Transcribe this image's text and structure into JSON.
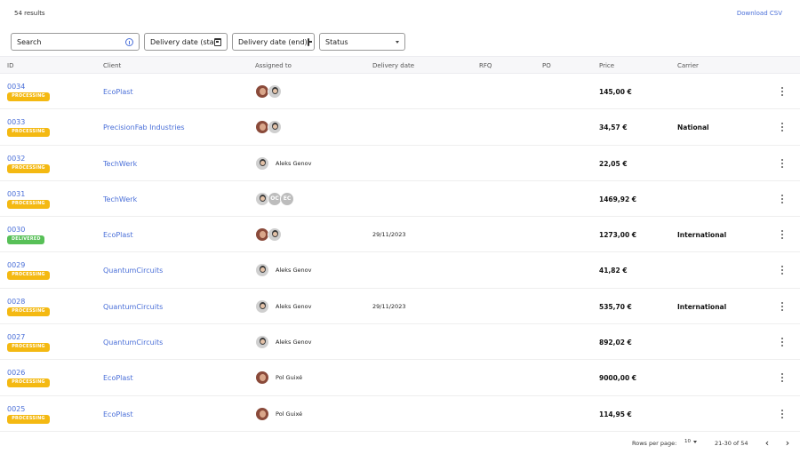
{
  "toolbar": {
    "results_count": "54 results",
    "download_label": "Download CSV"
  },
  "filters": {
    "search_placeholder": "Search",
    "delivery_start_label": "Delivery date (start)",
    "delivery_end_label": "Delivery date (end)",
    "status_label": "Status"
  },
  "table": {
    "columns": {
      "id": "ID",
      "client": "Client",
      "assigned": "Assigned to",
      "delivery": "Delivery date",
      "rfq": "RFQ",
      "po": "PO",
      "price": "Price",
      "carrier": "Carrier"
    },
    "rows": [
      {
        "id": "0034",
        "status": "PROCESSING",
        "client": "EcoPlast",
        "assignees": [
          "pol",
          "aleks"
        ],
        "assignee_name": "",
        "delivery": "",
        "price": "145,00 €",
        "carrier": ""
      },
      {
        "id": "0033",
        "status": "PROCESSING",
        "client": "PrecisionFab Industries",
        "assignees": [
          "pol",
          "aleks"
        ],
        "assignee_name": "",
        "delivery": "",
        "price": "34,57 €",
        "carrier": "National"
      },
      {
        "id": "0032",
        "status": "PROCESSING",
        "client": "TechWerk",
        "assignees": [
          "aleks"
        ],
        "assignee_name": "Aleks Genov",
        "delivery": "",
        "price": "22,05 €",
        "carrier": ""
      },
      {
        "id": "0031",
        "status": "PROCESSING",
        "client": "TechWerk",
        "assignees": [
          "aleks",
          "OC",
          "EC"
        ],
        "assignee_name": "",
        "delivery": "",
        "price": "1469,92 €",
        "carrier": ""
      },
      {
        "id": "0030",
        "status": "DELIVERED",
        "client": "EcoPlast",
        "assignees": [
          "pol",
          "aleks"
        ],
        "assignee_name": "",
        "delivery": "29/11/2023",
        "price": "1273,00 €",
        "carrier": "International"
      },
      {
        "id": "0029",
        "status": "PROCESSING",
        "client": "QuantumCircuits",
        "assignees": [
          "aleks"
        ],
        "assignee_name": "Aleks Genov",
        "delivery": "",
        "price": "41,82 €",
        "carrier": ""
      },
      {
        "id": "0028",
        "status": "PROCESSING",
        "client": "QuantumCircuits",
        "assignees": [
          "aleks"
        ],
        "assignee_name": "Aleks Genov",
        "delivery": "29/11/2023",
        "price": "535,70 €",
        "carrier": "International"
      },
      {
        "id": "0027",
        "status": "PROCESSING",
        "client": "QuantumCircuits",
        "assignees": [
          "aleks"
        ],
        "assignee_name": "Aleks Genov",
        "delivery": "",
        "price": "892,02 €",
        "carrier": ""
      },
      {
        "id": "0026",
        "status": "PROCESSING",
        "client": "EcoPlast",
        "assignees": [
          "pol"
        ],
        "assignee_name": "Pol Guixé",
        "delivery": "",
        "price": "9000,00 €",
        "carrier": ""
      },
      {
        "id": "0025",
        "status": "PROCESSING",
        "client": "EcoPlast",
        "assignees": [
          "pol"
        ],
        "assignee_name": "Pol Guixé",
        "delivery": "",
        "price": "114,95 €",
        "carrier": ""
      }
    ]
  },
  "pagination": {
    "rows_per_page_label": "Rows per page:",
    "rows_per_page_value": "10",
    "range": "21-30 of 54"
  },
  "colors": {
    "link": "#4a6fd8",
    "processing": "#f4b912",
    "delivered": "#57c057"
  }
}
